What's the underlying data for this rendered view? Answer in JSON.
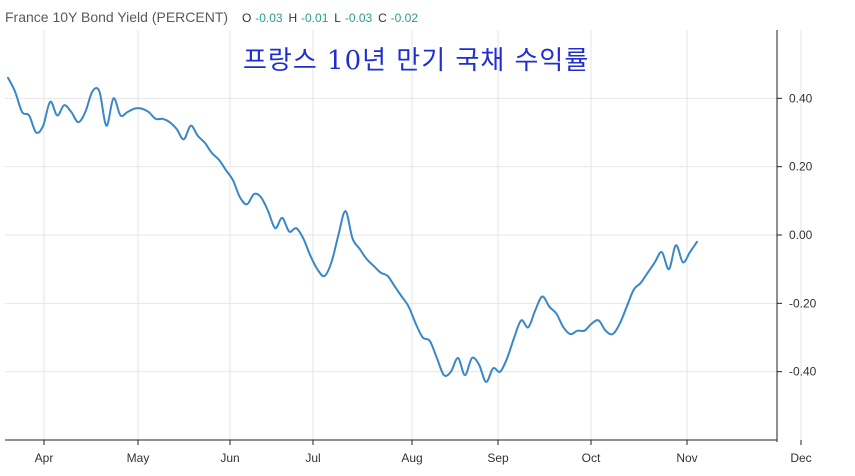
{
  "header": {
    "symbol": "France 10Y Bond Yield (PERCENT)",
    "o_label": "O",
    "o_value": "-0.03",
    "h_label": "H",
    "h_value": "-0.01",
    "l_label": "L",
    "l_value": "-0.03",
    "c_label": "C",
    "c_value": "-0.02"
  },
  "overlay_title": "프랑스 10년 만기 국채 수익률",
  "colors": {
    "line": "#3a87c8",
    "grid": "#e6e6e6",
    "axis": "#222222",
    "value_text": "#2a9d8f"
  },
  "chart_data": {
    "type": "line",
    "title": "France 10Y Bond Yield (PERCENT)",
    "x_labels": [
      "Apr",
      "May",
      "Jun",
      "Jul",
      "Aug",
      "Sep",
      "Oct",
      "Nov",
      "Dec"
    ],
    "y_ticks": [
      "0.40",
      "0.20",
      "0.00",
      "-0.20",
      "-0.40"
    ],
    "y_tick_values": [
      0.4,
      0.2,
      0.0,
      -0.2,
      -0.4
    ],
    "ylim": [
      -0.6,
      0.6
    ],
    "y_axis_side": "right",
    "grid": true,
    "series": [
      {
        "values": [
          0.46,
          0.42,
          0.36,
          0.35,
          0.3,
          0.32,
          0.39,
          0.35,
          0.38,
          0.36,
          0.33,
          0.36,
          0.42,
          0.42,
          0.32,
          0.4,
          0.35,
          0.36,
          0.37,
          0.37,
          0.36,
          0.34,
          0.34,
          0.33,
          0.31,
          0.28,
          0.32,
          0.29,
          0.27,
          0.24,
          0.22,
          0.19,
          0.16,
          0.11,
          0.09,
          0.12,
          0.11,
          0.07,
          0.02,
          0.05,
          0.01,
          0.02,
          -0.01,
          -0.06,
          -0.1,
          -0.12,
          -0.08,
          0.0,
          0.07,
          -0.01,
          -0.04,
          -0.07,
          -0.09,
          -0.11,
          -0.12,
          -0.15,
          -0.18,
          -0.21,
          -0.26,
          -0.3,
          -0.31,
          -0.36,
          -0.41,
          -0.4,
          -0.36,
          -0.41,
          -0.36,
          -0.38,
          -0.43,
          -0.39,
          -0.4,
          -0.36,
          -0.3,
          -0.25,
          -0.27,
          -0.22,
          -0.18,
          -0.21,
          -0.23,
          -0.27,
          -0.29,
          -0.28,
          -0.28,
          -0.26,
          -0.25,
          -0.28,
          -0.29,
          -0.26,
          -0.21,
          -0.16,
          -0.14,
          -0.11,
          -0.08,
          -0.05,
          -0.1,
          -0.03,
          -0.08,
          -0.05,
          -0.02
        ]
      }
    ]
  }
}
